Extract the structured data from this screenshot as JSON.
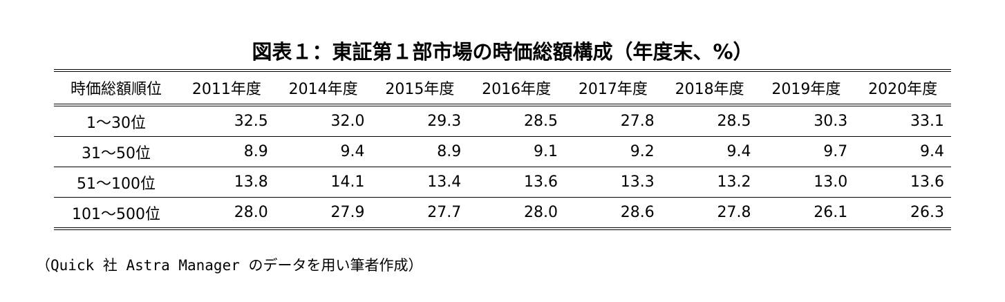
{
  "title": "図表１：東証第１部市場の時価総額構成（年度末、%）",
  "table": {
    "header": [
      "時価総額順位",
      "2011年度",
      "2014年度",
      "2015年度",
      "2016年度",
      "2017年度",
      "2018年度",
      "2019年度",
      "2020年度"
    ],
    "rows": [
      [
        "1～30位",
        "32.5",
        "32.0",
        "29.3",
        "28.5",
        "27.8",
        "28.5",
        "30.3",
        "33.1"
      ],
      [
        "31～50位",
        "8.9",
        "9.4",
        "8.9",
        "9.1",
        "9.2",
        "9.4",
        "9.7",
        "9.4"
      ],
      [
        "51～100位",
        "13.8",
        "14.1",
        "13.4",
        "13.6",
        "13.3",
        "13.2",
        "13.0",
        "13.6"
      ],
      [
        "101～500位",
        "28.0",
        "27.9",
        "27.7",
        "28.0",
        "28.6",
        "27.8",
        "26.1",
        "26.3"
      ]
    ]
  },
  "note": "（Quick 社 Astra Manager のデータを用い筆者作成）"
}
